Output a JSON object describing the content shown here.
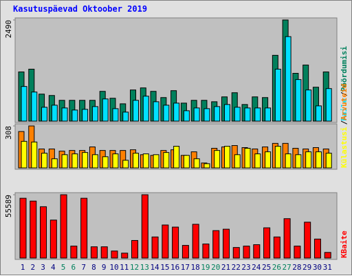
{
  "chart_data": [
    {
      "type": "bar",
      "title": "Kasutuspäevad Oktoober 2019",
      "legend_separator": "/",
      "ylim": [
        0,
        2490
      ],
      "yticks": [
        2490
      ],
      "series": [
        {
          "name": "Pöördumisi",
          "color": "#00805C",
          "values": [
            1211,
            1279,
            665,
            631,
            512,
            512,
            512,
            512,
            733,
            563,
            426,
            767,
            818,
            733,
            580,
            750,
            443,
            512,
            512,
            477,
            597,
            699,
            409,
            597,
            580,
            1620,
            2490,
            1177,
            1381,
            835,
            1211
          ]
        },
        {
          "name": "Faile",
          "color": "#00E0FF",
          "values": [
            853,
            716,
            341,
            392,
            324,
            273,
            290,
            358,
            546,
            307,
            222,
            512,
            614,
            477,
            392,
            443,
            256,
            324,
            307,
            358,
            409,
            341,
            324,
            324,
            324,
            1279,
            2080,
            1023,
            767,
            375,
            801
          ]
        }
      ]
    },
    {
      "type": "bar",
      "ylim": [
        0,
        308
      ],
      "yticks": [
        308
      ],
      "series": [
        {
          "name": "Arvuteid",
          "color": "#FF8000",
          "values": [
            267,
            308,
            139,
            139,
            123,
            128,
            128,
            154,
            128,
            128,
            128,
            133,
            97,
            92,
            128,
            133,
            92,
            118,
            36,
            144,
            154,
            164,
            149,
            139,
            154,
            180,
            180,
            144,
            139,
            149,
            139
          ]
        },
        {
          "name": "Külastusi",
          "color": "#FFFF00",
          "values": [
            195,
            190,
            108,
            67,
            97,
            103,
            113,
            97,
            82,
            103,
            56,
            108,
            103,
            97,
            113,
            159,
            92,
            67,
            31,
            128,
            159,
            97,
            144,
            103,
            118,
            159,
            103,
            97,
            118,
            118,
            108
          ]
        }
      ]
    },
    {
      "type": "bar",
      "ylim": [
        0,
        55589
      ],
      "yticks": [
        55589
      ],
      "categories": [
        "1",
        "2",
        "3",
        "4",
        "5",
        "6",
        "7",
        "8",
        "9",
        "10",
        "11",
        "12",
        "13",
        "14",
        "15",
        "16",
        "17",
        "18",
        "19",
        "20",
        "21",
        "22",
        "23",
        "24",
        "25",
        "26",
        "27",
        "28",
        "29",
        "30",
        "31"
      ],
      "category_colors": [
        "#000080",
        "#000080",
        "#000080",
        "#000080",
        "#00805C",
        "#00805C",
        "#000080",
        "#000080",
        "#000080",
        "#000080",
        "#000080",
        "#00805C",
        "#00805C",
        "#000080",
        "#000080",
        "#000080",
        "#000080",
        "#000080",
        "#00805C",
        "#00805C",
        "#000080",
        "#000080",
        "#000080",
        "#000080",
        "#000080",
        "#00805C",
        "#00805C",
        "#000080",
        "#000080",
        "#000080",
        "#000080"
      ],
      "series": [
        {
          "name": "KBaite",
          "color": "#FF0000",
          "values": [
            52500,
            50030,
            45090,
            33350,
            55589,
            10500,
            52500,
            9880,
            9880,
            6180,
            4320,
            15440,
            55589,
            18530,
            29030,
            27180,
            11120,
            29650,
            12350,
            24090,
            25330,
            9270,
            10500,
            11740,
            26560,
            18530,
            34590,
            10500,
            31500,
            16680,
            4940
          ]
        }
      ]
    }
  ]
}
